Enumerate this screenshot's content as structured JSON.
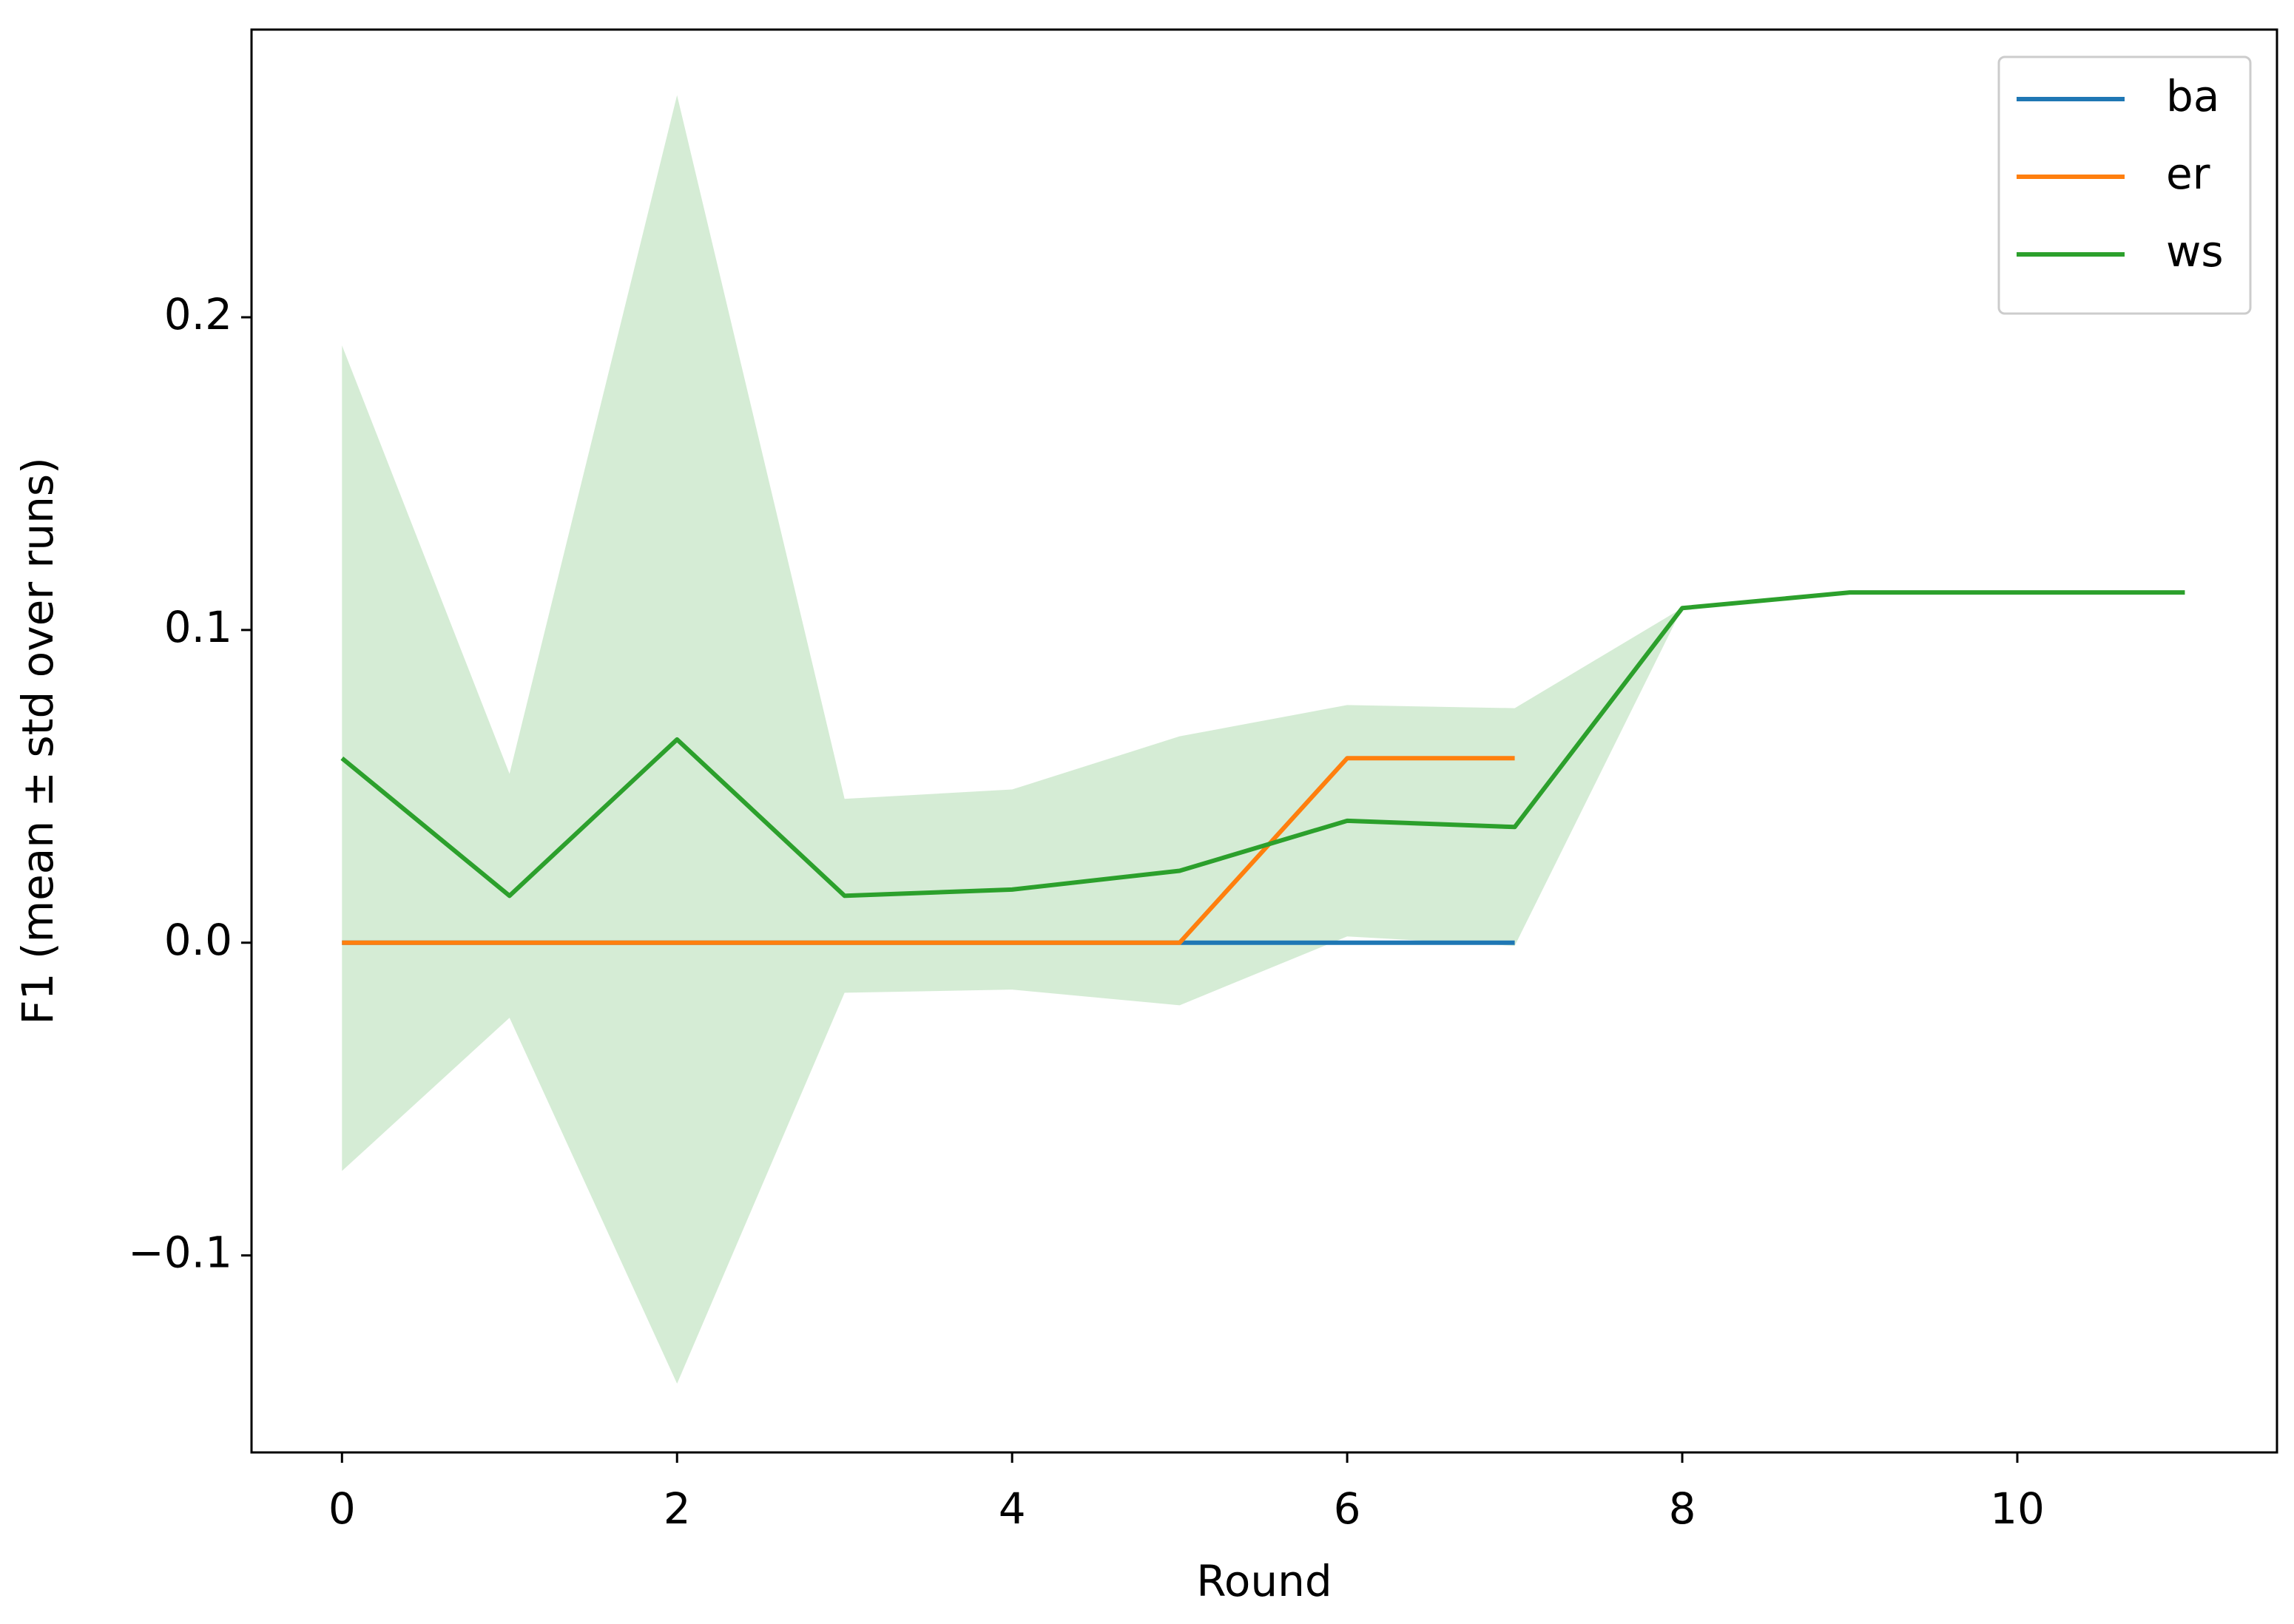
{
  "chart_data": {
    "type": "line",
    "xlabel": "Round",
    "ylabel": "F1 (mean ± std over runs)",
    "x": [
      0,
      1,
      2,
      3,
      4,
      5,
      6,
      7,
      8,
      9,
      10,
      11
    ],
    "series": [
      {
        "name": "ba",
        "color": "#1f77b4",
        "values": [
          0,
          0,
          0,
          0,
          0,
          0,
          0,
          0,
          null,
          null,
          null,
          null
        ]
      },
      {
        "name": "er",
        "color": "#ff7f0e",
        "values": [
          0,
          0,
          0,
          0,
          0,
          0,
          0.059,
          0.059,
          null,
          null,
          null,
          null
        ]
      },
      {
        "name": "ws",
        "color": "#2ca02c",
        "values": [
          0.059,
          0.015,
          0.065,
          0.015,
          0.017,
          0.023,
          0.039,
          0.037,
          0.107,
          0.112,
          0.112,
          0.112
        ],
        "std": [
          0.132,
          0.039,
          0.206,
          0.031,
          0.032,
          0.043,
          0.037,
          0.038,
          0,
          0,
          0,
          0
        ]
      }
    ],
    "xlim": [
      -0.54,
      11.55
    ],
    "ylim": [
      -0.163,
      0.292
    ],
    "xticks": [
      0,
      2,
      4,
      6,
      8,
      10
    ],
    "yticks": [
      {
        "value": -0.1,
        "label": "−0.1"
      },
      {
        "value": 0,
        "label": "0.0"
      },
      0.1,
      0.2
    ],
    "legend": "upper right",
    "grid": false
  }
}
